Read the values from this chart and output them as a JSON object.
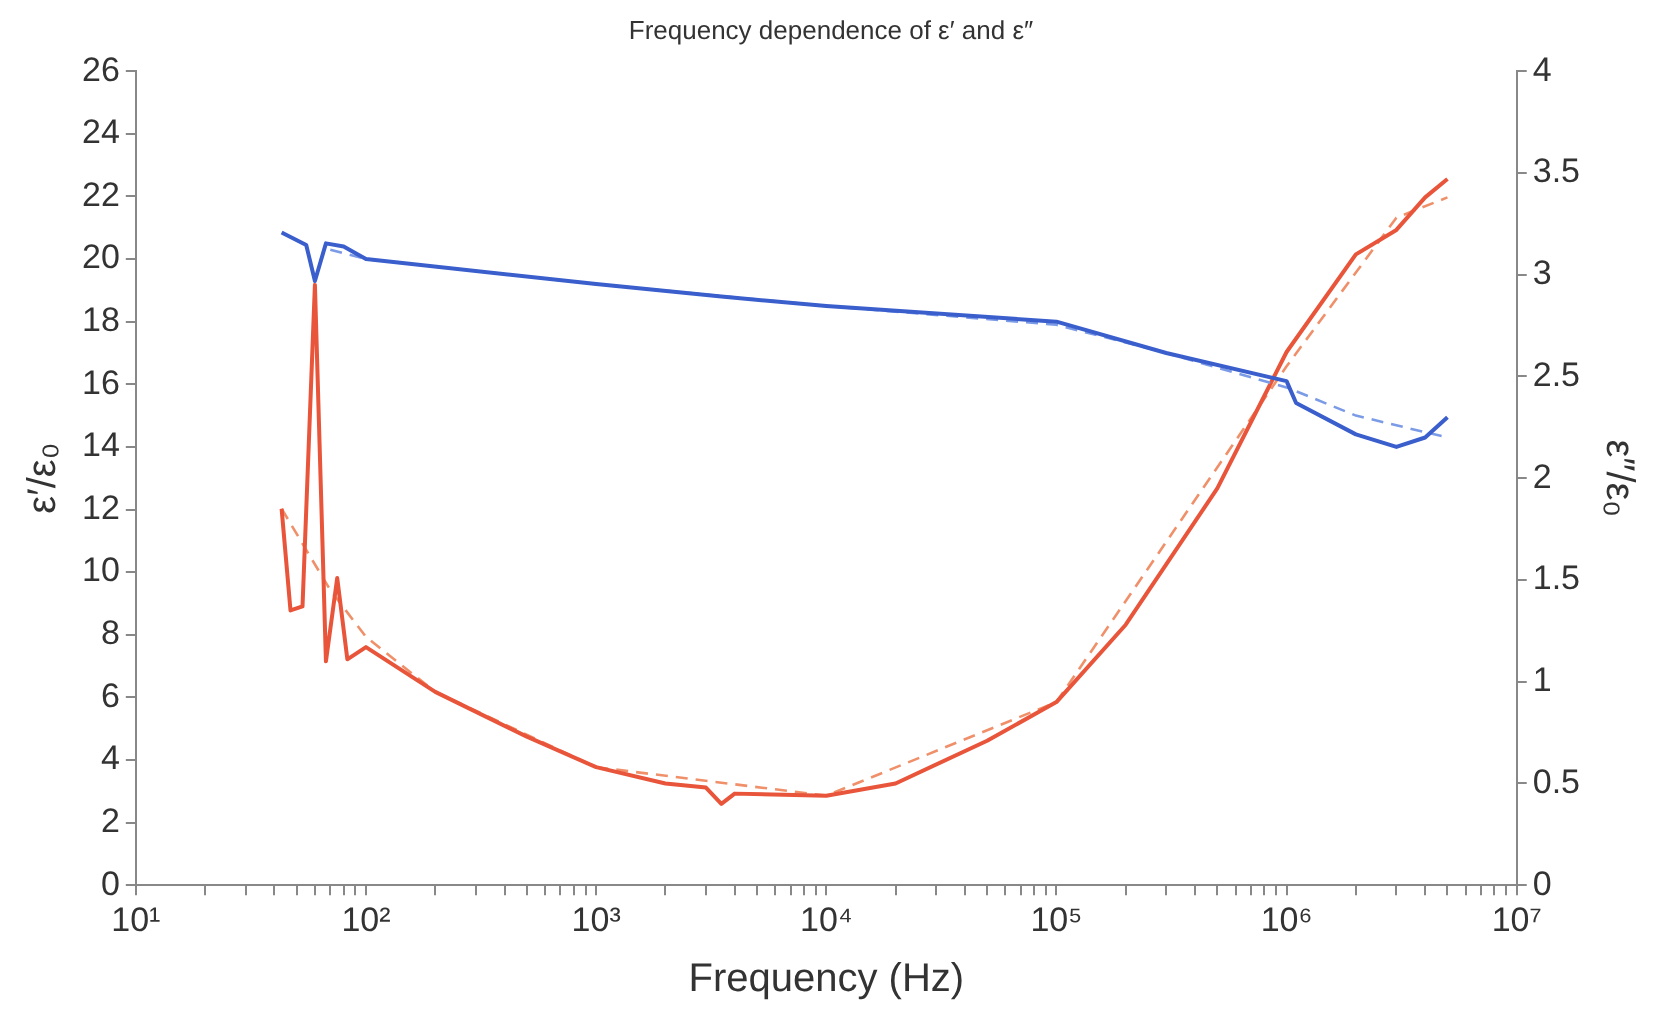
{
  "chart_data": {
    "type": "line",
    "title": "Frequency dependence of ε′ and ε″",
    "xlabel": "Frequency (Hz)",
    "ylabel": "ε′/ε₀",
    "y2label": "ε″/ε₀",
    "log": "x",
    "grid": false,
    "legend": false,
    "marker": "none",
    "xlim": [
      10,
      10000000
    ],
    "xticks": [
      {
        "value": 10,
        "label": "10¹"
      },
      {
        "value": 20,
        "label": null
      },
      {
        "value": 30,
        "label": null
      },
      {
        "value": 40,
        "label": null
      },
      {
        "value": 50,
        "label": null
      },
      {
        "value": 60,
        "label": null
      },
      {
        "value": 70,
        "label": null
      },
      {
        "value": 80,
        "label": null
      },
      {
        "value": 90,
        "label": null
      },
      {
        "value": 100,
        "label": "10²"
      },
      {
        "value": 200,
        "label": null
      },
      {
        "value": 300,
        "label": null
      },
      {
        "value": 400,
        "label": null
      },
      {
        "value": 500,
        "label": null
      },
      {
        "value": 600,
        "label": null
      },
      {
        "value": 700,
        "label": null
      },
      {
        "value": 800,
        "label": null
      },
      {
        "value": 900,
        "label": null
      },
      {
        "value": 1000,
        "label": "10³"
      },
      {
        "value": 2000,
        "label": null
      },
      {
        "value": 3000,
        "label": null
      },
      {
        "value": 4000,
        "label": null
      },
      {
        "value": 5000,
        "label": null
      },
      {
        "value": 6000,
        "label": null
      },
      {
        "value": 7000,
        "label": null
      },
      {
        "value": 8000,
        "label": null
      },
      {
        "value": 9000,
        "label": null
      },
      {
        "value": 10000,
        "label": "10⁴"
      },
      {
        "value": 20000,
        "label": null
      },
      {
        "value": 30000,
        "label": null
      },
      {
        "value": 40000,
        "label": null
      },
      {
        "value": 50000,
        "label": null
      },
      {
        "value": 60000,
        "label": null
      },
      {
        "value": 70000,
        "label": null
      },
      {
        "value": 80000,
        "label": null
      },
      {
        "value": 90000,
        "label": null
      },
      {
        "value": 100000,
        "label": "10⁵"
      },
      {
        "value": 200000,
        "label": null
      },
      {
        "value": 300000,
        "label": null
      },
      {
        "value": 400000,
        "label": null
      },
      {
        "value": 500000,
        "label": null
      },
      {
        "value": 600000,
        "label": null
      },
      {
        "value": 700000,
        "label": null
      },
      {
        "value": 800000,
        "label": null
      },
      {
        "value": 900000,
        "label": null
      },
      {
        "value": 1000000,
        "label": "10⁶"
      },
      {
        "value": 2000000,
        "label": null
      },
      {
        "value": 3000000,
        "label": null
      },
      {
        "value": 4000000,
        "label": null
      },
      {
        "value": 5000000,
        "label": null
      },
      {
        "value": 6000000,
        "label": null
      },
      {
        "value": 7000000,
        "label": null
      },
      {
        "value": 8000000,
        "label": null
      },
      {
        "value": 9000000,
        "label": null
      },
      {
        "value": 10000000,
        "label": "10⁷"
      }
    ],
    "ylim": [
      0,
      26
    ],
    "yticks": [
      0,
      2,
      4,
      6,
      8,
      10,
      12,
      14,
      16,
      18,
      20,
      22,
      24,
      26
    ],
    "y2lim": [
      0,
      4
    ],
    "y2ticks": [
      0,
      0.5,
      1,
      1.5,
      2,
      2.5,
      3,
      3.5,
      4
    ],
    "series": [
      {
        "color": "#3a5fcd",
        "line_style": "solid",
        "x": [
          43,
          55,
          60,
          67,
          80,
          100,
          1000,
          3500,
          10000,
          100000,
          300000,
          1000000,
          1100000,
          2000000,
          3000000,
          4000000,
          5000000
        ],
        "values": [
          20.85,
          20.45,
          19.3,
          20.5,
          20.4,
          20.0,
          19.2,
          18.8,
          18.5,
          18.0,
          17.0,
          16.1,
          15.4,
          14.4,
          14.0,
          14.3,
          14.95
        ]
      },
      {
        "color": "#7c9be6",
        "line_style": "dashed",
        "x": [
          70,
          100,
          1000,
          10000,
          100000,
          300000,
          1000000,
          2000000,
          5000000
        ],
        "values": [
          20.3,
          20.0,
          19.2,
          18.5,
          17.9,
          17.0,
          15.9,
          15.0,
          14.3
        ]
      },
      {
        "color": "#e8553a",
        "line_style": "solid",
        "axis": "y2",
        "x": [
          43,
          47,
          53,
          60,
          67,
          75,
          83,
          100,
          200,
          500,
          1000,
          2000,
          3000,
          3500,
          4000,
          10000,
          20000,
          50000,
          100000,
          200000,
          500000,
          1000000,
          2000000,
          3000000,
          4000000,
          5000000
        ],
        "values": [
          1.85,
          1.35,
          1.37,
          2.95,
          1.1,
          1.51,
          1.11,
          1.17,
          0.95,
          0.73,
          0.58,
          0.5,
          0.48,
          0.4,
          0.45,
          0.44,
          0.5,
          0.71,
          0.9,
          1.28,
          1.95,
          2.62,
          3.1,
          3.22,
          3.38,
          3.47
        ]
      },
      {
        "color": "#f0906a",
        "line_style": "dashed",
        "axis": "y2",
        "x": [
          43,
          70,
          100,
          200,
          1000,
          10000,
          100000,
          1000000,
          3000000,
          5000000
        ],
        "values": [
          1.85,
          1.45,
          1.22,
          0.95,
          0.58,
          0.44,
          0.9,
          2.55,
          3.28,
          3.38
        ]
      }
    ]
  }
}
